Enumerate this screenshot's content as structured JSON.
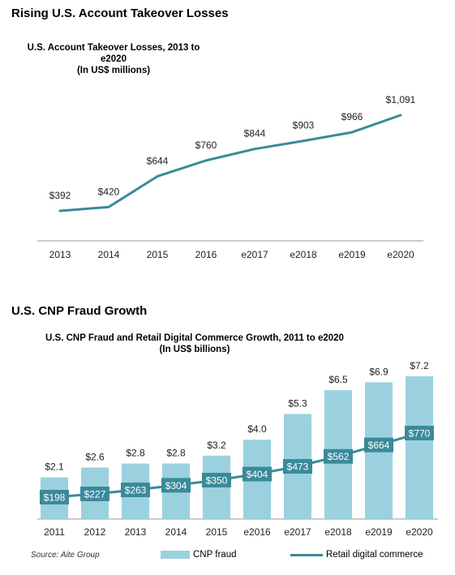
{
  "section1_title": "Rising U.S. Account Takeover Losses",
  "section2_title": "U.S. CNP Fraud Growth",
  "source": "Source: Aite Group",
  "colors": {
    "line": "#3a8a9a",
    "bar": "#9bd1df",
    "label_box": "#3a8a9a"
  },
  "chart_data": [
    {
      "type": "line",
      "title": "U.S. Account Takeover Losses, 2013 to e2020",
      "subtitle": "(In US$ millions)",
      "categories": [
        "2013",
        "2014",
        "2015",
        "2016",
        "e2017",
        "e2018",
        "e2019",
        "e2020"
      ],
      "values": [
        392,
        420,
        644,
        760,
        844,
        903,
        966,
        1091
      ],
      "data_labels": [
        "$392",
        "$420",
        "$644",
        "$760",
        "$844",
        "$903",
        "$966",
        "$1,091"
      ],
      "ylim": [
        250,
        1150
      ],
      "grid": false
    },
    {
      "type": "bar",
      "title": "U.S. CNP Fraud and Retail Digital Commerce Growth, 2011 to e2020",
      "subtitle": "(In US$ billions)",
      "categories": [
        "2011",
        "2012",
        "2013",
        "2014",
        "2015",
        "e2016",
        "e2017",
        "e2018",
        "e2019",
        "e2020"
      ],
      "series": [
        {
          "name": "CNP fraud",
          "type": "bar",
          "values": [
            2.1,
            2.6,
            2.8,
            2.8,
            3.2,
            4.0,
            5.3,
            6.5,
            6.9,
            7.2
          ],
          "data_labels": [
            "$2.1",
            "$2.6",
            "$2.8",
            "$2.8",
            "$3.2",
            "$4.0",
            "$5.3",
            "$6.5",
            "$6.9",
            "$7.2"
          ]
        },
        {
          "name": "Retail digital commerce",
          "type": "line",
          "values": [
            198,
            227,
            263,
            304,
            350,
            404,
            473,
            562,
            664,
            770
          ],
          "data_labels": [
            "$198",
            "$227",
            "$263",
            "$304",
            "$350",
            "$404",
            "$473",
            "$562",
            "$664",
            "$770"
          ]
        }
      ],
      "bar_ylim": [
        0,
        7.2
      ],
      "line_ylim": [
        0,
        1050
      ],
      "legend": "bottom",
      "grid": false
    }
  ]
}
